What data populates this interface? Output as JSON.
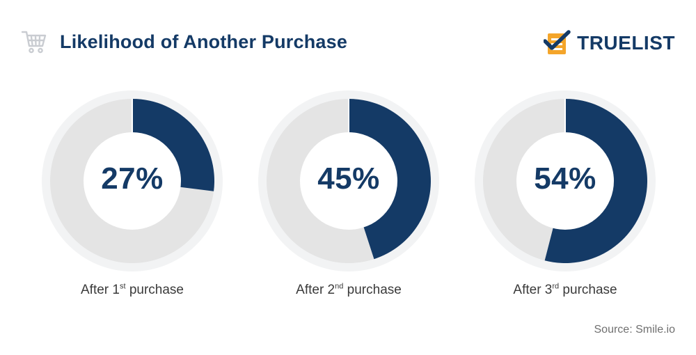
{
  "header": {
    "title": "Likelihood of Another Purchase",
    "brand": "TRUELIST"
  },
  "colors": {
    "accent": "#143a66",
    "remainder": "#e4e4e4",
    "halo": "#f2f3f4",
    "brand_orange": "#f4a52a"
  },
  "icons": {
    "header": "shopping-cart-icon",
    "brand": "checklist-logo-icon"
  },
  "chart_data": {
    "type": "pie",
    "title": "Likelihood of Another Purchase",
    "unit": "%",
    "series": [
      {
        "value": 27,
        "label": "27%",
        "caption": {
          "prefix": "After 1",
          "ordinal": "st",
          "suffix": " purchase"
        }
      },
      {
        "value": 45,
        "label": "45%",
        "caption": {
          "prefix": "After 2",
          "ordinal": "nd",
          "suffix": " purchase"
        }
      },
      {
        "value": 54,
        "label": "54%",
        "caption": {
          "prefix": "After 3",
          "ordinal": "rd",
          "suffix": " purchase"
        }
      }
    ]
  },
  "source": "Source: Smile.io"
}
